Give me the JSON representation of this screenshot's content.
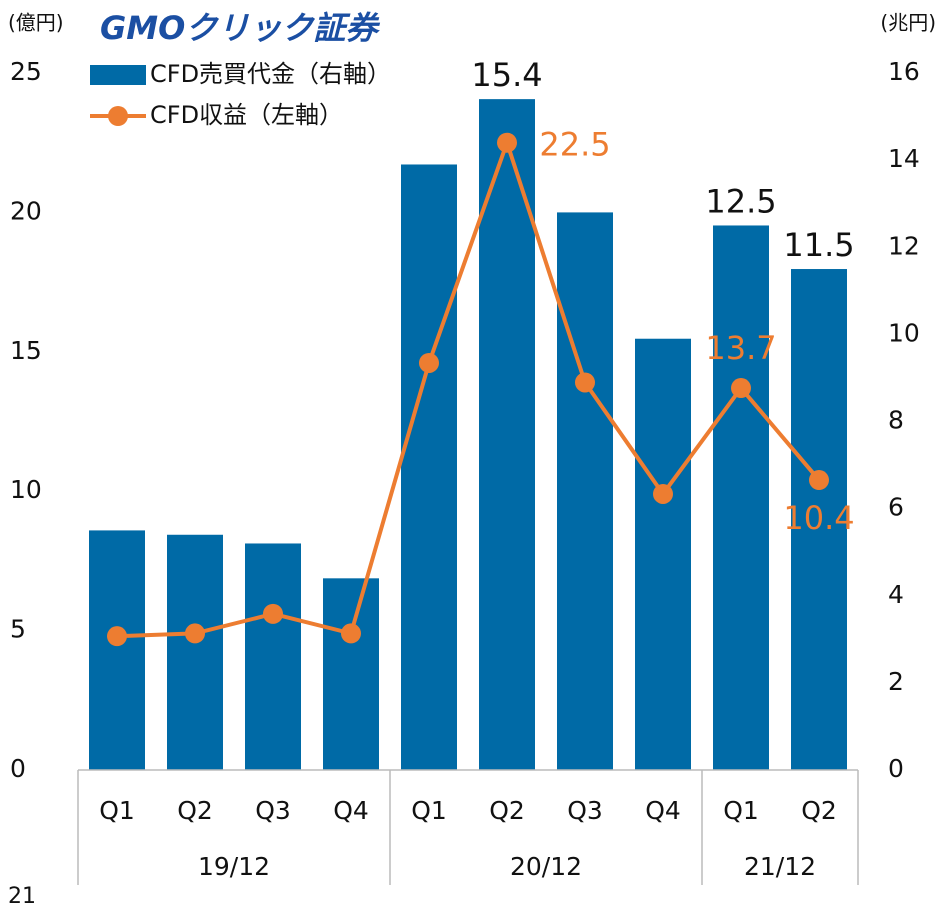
{
  "chart_data": {
    "type": "bar-line",
    "logo": "GMOクリック証券",
    "y_label": "(億円)",
    "y2_label": "(兆円)",
    "page_number": "21",
    "categories": [
      "Q1",
      "Q2",
      "Q3",
      "Q4",
      "Q1",
      "Q2",
      "Q3",
      "Q4",
      "Q1",
      "Q2"
    ],
    "groups": [
      {
        "name": "19/12",
        "count": 4
      },
      {
        "name": "20/12",
        "count": 4
      },
      {
        "name": "21/12",
        "count": 2
      }
    ],
    "series": [
      {
        "name": "CFD売買代金（右軸）",
        "kind": "bar",
        "axis": "y2",
        "color": "#006aa6",
        "values": [
          5.5,
          5.4,
          5.2,
          4.4,
          13.9,
          15.4,
          12.8,
          9.9,
          12.5,
          11.5
        ],
        "value_labels": [
          null,
          null,
          null,
          null,
          null,
          "15.4",
          null,
          null,
          "12.5",
          "11.5"
        ]
      },
      {
        "name": "CFD収益（左軸）",
        "kind": "line",
        "axis": "y",
        "color": "#ed7d31",
        "values": [
          4.8,
          4.9,
          5.6,
          4.9,
          14.6,
          22.5,
          13.9,
          9.9,
          13.7,
          10.4
        ],
        "value_labels": [
          null,
          null,
          null,
          null,
          null,
          "22.5",
          null,
          null,
          "13.7",
          "10.4"
        ]
      }
    ],
    "ylim": [
      0,
      25
    ],
    "yticks": [
      0,
      5,
      10,
      15,
      20,
      25
    ],
    "y2lim": [
      0,
      16
    ],
    "y2ticks": [
      0,
      2,
      4,
      6,
      8,
      10,
      12,
      14,
      16
    ]
  }
}
